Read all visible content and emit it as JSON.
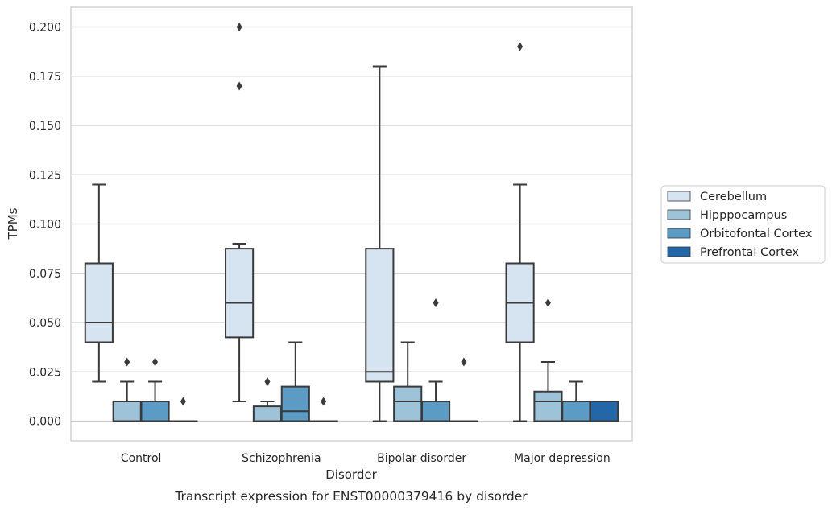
{
  "chart_data": {
    "type": "box",
    "caption": "Transcript expression for ENST00000379416 by disorder",
    "xlabel": "Disorder",
    "ylabel": "TPMs",
    "ylim": [
      -0.01,
      0.21
    ],
    "yticks": [
      "0.000",
      "0.025",
      "0.050",
      "0.075",
      "0.100",
      "0.125",
      "0.150",
      "0.175",
      "0.200"
    ],
    "grid": "horizontal",
    "legend_position": "right",
    "categories": [
      "Control",
      "Schizophrenia",
      "Bipolar disorder",
      "Major depression"
    ],
    "series": [
      {
        "name": "Cerebellum",
        "color": "#d6e4f2",
        "boxes": [
          {
            "whisker_low": 0.02,
            "q1": 0.04,
            "median": 0.05,
            "q3": 0.08,
            "whisker_high": 0.12,
            "outliers": []
          },
          {
            "whisker_low": 0.01,
            "q1": 0.0425,
            "median": 0.06,
            "q3": 0.0875,
            "whisker_high": 0.09,
            "outliers": [
              0.17,
              0.2
            ]
          },
          {
            "whisker_low": 0.0,
            "q1": 0.02,
            "median": 0.025,
            "q3": 0.0875,
            "whisker_high": 0.18,
            "outliers": []
          },
          {
            "whisker_low": 0.0,
            "q1": 0.04,
            "median": 0.06,
            "q3": 0.08,
            "whisker_high": 0.12,
            "outliers": [
              0.19
            ]
          }
        ]
      },
      {
        "name": "Hipppocampus",
        "color": "#9ec3d9",
        "boxes": [
          {
            "whisker_low": 0.0,
            "q1": 0.0,
            "median": 0.0,
            "q3": 0.01,
            "whisker_high": 0.02,
            "outliers": [
              0.03
            ]
          },
          {
            "whisker_low": 0.0,
            "q1": 0.0,
            "median": 0.0,
            "q3": 0.0075,
            "whisker_high": 0.01,
            "outliers": [
              0.02
            ]
          },
          {
            "whisker_low": 0.0,
            "q1": 0.0,
            "median": 0.01,
            "q3": 0.0175,
            "whisker_high": 0.04,
            "outliers": []
          },
          {
            "whisker_low": 0.0,
            "q1": 0.0,
            "median": 0.01,
            "q3": 0.015,
            "whisker_high": 0.03,
            "outliers": [
              0.06
            ]
          }
        ]
      },
      {
        "name": "Orbitofontal Cortex",
        "color": "#5b9bc4",
        "boxes": [
          {
            "whisker_low": 0.0,
            "q1": 0.0,
            "median": 0.0,
            "q3": 0.01,
            "whisker_high": 0.02,
            "outliers": [
              0.03
            ]
          },
          {
            "whisker_low": 0.0,
            "q1": 0.0,
            "median": 0.005,
            "q3": 0.0175,
            "whisker_high": 0.04,
            "outliers": []
          },
          {
            "whisker_low": 0.0,
            "q1": 0.0,
            "median": 0.01,
            "q3": 0.01,
            "whisker_high": 0.02,
            "outliers": [
              0.06
            ]
          },
          {
            "whisker_low": 0.0,
            "q1": 0.0,
            "median": 0.01,
            "q3": 0.01,
            "whisker_high": 0.02,
            "outliers": []
          }
        ]
      },
      {
        "name": "Prefrontal Cortex",
        "color": "#2367a8",
        "boxes": [
          {
            "whisker_low": 0.0,
            "q1": 0.0,
            "median": 0.0,
            "q3": 0.0,
            "whisker_high": 0.0,
            "outliers": [
              0.01
            ]
          },
          {
            "whisker_low": 0.0,
            "q1": 0.0,
            "median": 0.0,
            "q3": 0.0,
            "whisker_high": 0.0,
            "outliers": [
              0.01
            ]
          },
          {
            "whisker_low": 0.0,
            "q1": 0.0,
            "median": 0.0,
            "q3": 0.0,
            "whisker_high": 0.0,
            "outliers": [
              0.03
            ]
          },
          {
            "whisker_low": 0.0,
            "q1": 0.0,
            "median": 0.0,
            "q3": 0.01,
            "whisker_high": 0.01,
            "outliers": []
          }
        ]
      }
    ]
  }
}
